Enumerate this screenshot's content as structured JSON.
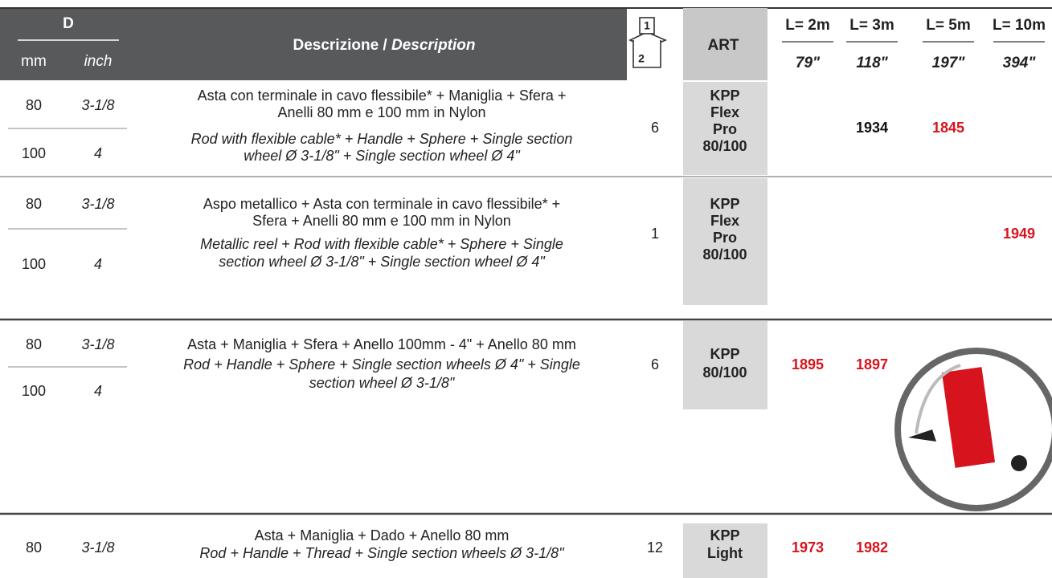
{
  "header": {
    "d": "D",
    "mm": "mm",
    "inch": "inch",
    "description": "Descrizione / ",
    "description_en": "Description",
    "box_top": "1",
    "box_bottom": "2",
    "art": "ART",
    "lengths": [
      {
        "label": "L= 2m",
        "inch": "79\""
      },
      {
        "label": "L= 3m",
        "inch": "118\""
      },
      {
        "label": "L= 5m",
        "inch": "197\""
      },
      {
        "label": "L= 10m",
        "inch": "394\""
      }
    ]
  },
  "rows": [
    {
      "sizes": [
        {
          "mm": "80",
          "inch": "3-1/8"
        },
        {
          "mm": "100",
          "inch": "4"
        }
      ],
      "desc_it": [
        "Asta con terminale in cavo flessibile* + Maniglia + Sfera +",
        "Anelli 80 mm e 100 mm in Nylon"
      ],
      "desc_en": [
        "Rod with flexible cable* + Handle + Sphere + Single section",
        "wheel Ø 3-1/8\" + Single section wheel Ø 4\""
      ],
      "qty": "6",
      "art": [
        "KPP",
        "Flex",
        "Pro",
        "80/100"
      ],
      "prices": [
        null,
        {
          "code": "1934",
          "color": "#111111"
        },
        {
          "code": "1845",
          "color": "#d7141d"
        },
        null
      ]
    },
    {
      "sizes": [
        {
          "mm": "80",
          "inch": "3-1/8"
        },
        {
          "mm": "100",
          "inch": "4"
        }
      ],
      "desc_it": [
        "Aspo metallico + Asta con terminale in cavo flessibile* +",
        "Sfera + Anelli 80 mm e 100 mm in Nylon"
      ],
      "desc_en": [
        "Metallic reel + Rod with flexible cable* + Sphere + Single",
        "section wheel Ø 3-1/8\" + Single section wheel Ø 4\""
      ],
      "qty": "1",
      "art": [
        "KPP",
        "Flex",
        "Pro",
        "80/100"
      ],
      "prices": [
        null,
        null,
        null,
        {
          "code": "1949",
          "color": "#d7141d"
        }
      ]
    },
    {
      "sizes": [
        {
          "mm": "80",
          "inch": "3-1/8"
        },
        {
          "mm": "100",
          "inch": "4"
        }
      ],
      "desc_it": [
        "Asta + Maniglia + Sfera + Anello 100mm - 4\" + Anello 80 mm"
      ],
      "desc_en": [
        "Rod + Handle + Sphere + Single section wheels Ø 4\" + Single",
        "section wheel Ø 3-1/8\""
      ],
      "qty": "6",
      "art": [
        "KPP",
        "80/100"
      ],
      "prices": [
        {
          "code": "1895",
          "color": "#d7141d"
        },
        {
          "code": "1897",
          "color": "#d7141d"
        },
        null,
        null
      ]
    },
    {
      "sizes": [
        {
          "mm": "80",
          "inch": "3-1/8"
        }
      ],
      "desc_it": [
        "Asta + Maniglia + Dado + Anello 80 mm"
      ],
      "desc_en": [
        "Rod + Handle + Thread + Single section wheels Ø 3-1/8\""
      ],
      "qty": "12",
      "art": [
        "KPP",
        "Light"
      ],
      "prices": [
        {
          "code": "1973",
          "color": "#d7141d"
        },
        {
          "code": "1982",
          "color": "#d7141d"
        },
        null,
        null
      ]
    }
  ]
}
